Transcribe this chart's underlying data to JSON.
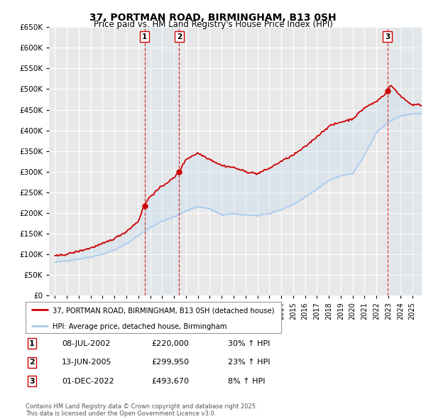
{
  "title": "37, PORTMAN ROAD, BIRMINGHAM, B13 0SH",
  "subtitle": "Price paid vs. HM Land Registry's House Price Index (HPI)",
  "bg_color": "#ffffff",
  "plot_bg_color": "#e8e8e8",
  "grid_color": "#ffffff",
  "line1_color": "#cc0000",
  "line2_color": "#aaccee",
  "shade_color": "#cce0f0",
  "ylim": [
    0,
    650000
  ],
  "yticks": [
    0,
    50000,
    100000,
    150000,
    200000,
    250000,
    300000,
    350000,
    400000,
    450000,
    500000,
    550000,
    600000,
    650000
  ],
  "ytick_labels": [
    "£0",
    "£50K",
    "£100K",
    "£150K",
    "£200K",
    "£250K",
    "£300K",
    "£350K",
    "£400K",
    "£450K",
    "£500K",
    "£550K",
    "£600K",
    "£650K"
  ],
  "sales": [
    {
      "date_num": 2002.52,
      "price": 220000,
      "label": "1"
    },
    {
      "date_num": 2005.44,
      "price": 299950,
      "label": "2"
    },
    {
      "date_num": 2022.92,
      "price": 493670,
      "label": "3"
    }
  ],
  "sale_labels_info": [
    {
      "num": "1",
      "date": "08-JUL-2002",
      "price": "£220,000",
      "hpi": "30% ↑ HPI"
    },
    {
      "num": "2",
      "date": "13-JUN-2005",
      "price": "£299,950",
      "hpi": "23% ↑ HPI"
    },
    {
      "num": "3",
      "date": "01-DEC-2022",
      "price": "£493,670",
      "hpi": "8% ↑ HPI"
    }
  ],
  "legend_line1": "37, PORTMAN ROAD, BIRMINGHAM, B13 0SH (detached house)",
  "legend_line2": "HPI: Average price, detached house, Birmingham",
  "footer": "Contains HM Land Registry data © Crown copyright and database right 2025.\nThis data is licensed under the Open Government Licence v3.0.",
  "xmin": 1994.5,
  "xmax": 2025.8
}
